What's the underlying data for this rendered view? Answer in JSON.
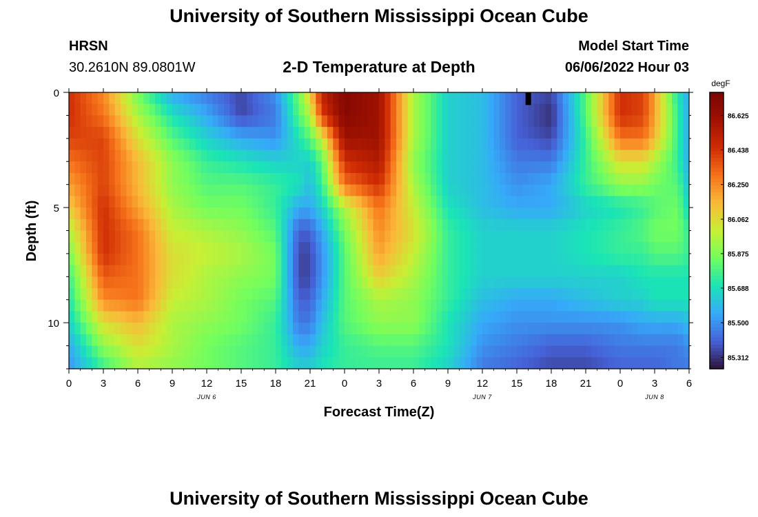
{
  "page": {
    "title": "University of Southern Mississippi Ocean Cube",
    "footer_title": "University of Southern Mississippi Ocean Cube",
    "station": "HRSN",
    "coords": "30.2610N  89.0801W",
    "plot_title": "2-D Temperature at Depth",
    "model_start_label": "Model Start Time",
    "model_start_value": "06/06/2022 Hour 03"
  },
  "chart_data": {
    "type": "heatmap",
    "title": "2-D Temperature at Depth",
    "xlabel": "Forecast Time(Z)",
    "ylabel": "Depth (ft)",
    "x_range_hours": [
      0,
      54
    ],
    "y_range_ft": [
      0,
      12
    ],
    "x_ticks": [
      {
        "h": 0,
        "label": "0"
      },
      {
        "h": 3,
        "label": "3"
      },
      {
        "h": 6,
        "label": "6"
      },
      {
        "h": 9,
        "label": "9"
      },
      {
        "h": 12,
        "label": "12"
      },
      {
        "h": 15,
        "label": "15"
      },
      {
        "h": 18,
        "label": "18"
      },
      {
        "h": 21,
        "label": "21"
      },
      {
        "h": 24,
        "label": "0"
      },
      {
        "h": 27,
        "label": "3"
      },
      {
        "h": 30,
        "label": "6"
      },
      {
        "h": 33,
        "label": "9"
      },
      {
        "h": 36,
        "label": "12"
      },
      {
        "h": 39,
        "label": "15"
      },
      {
        "h": 42,
        "label": "18"
      },
      {
        "h": 45,
        "label": "21"
      },
      {
        "h": 48,
        "label": "0"
      },
      {
        "h": 51,
        "label": "3"
      },
      {
        "h": 54,
        "label": "6"
      }
    ],
    "date_labels": [
      {
        "h": 12,
        "label": "JUN 6"
      },
      {
        "h": 36,
        "label": "JUN 7"
      },
      {
        "h": 51,
        "label": "JUN 8"
      }
    ],
    "y_ticks": [
      {
        "v": 0,
        "label": "0"
      },
      {
        "v": 5,
        "label": "5"
      },
      {
        "v": 10,
        "label": "10"
      }
    ],
    "colorbar": {
      "unit": "degF",
      "min": 85.25,
      "max": 86.75,
      "ticks": [
        "86.625",
        "86.438",
        "86.250",
        "86.062",
        "85.875",
        "85.688",
        "85.500",
        "85.312"
      ]
    },
    "hours": [
      0,
      3,
      6,
      9,
      12,
      15,
      18,
      20,
      21,
      22,
      24,
      27,
      30,
      33,
      36,
      39,
      42,
      45,
      48,
      50,
      51,
      53,
      54
    ],
    "depths_ft": [
      0,
      1,
      2,
      3,
      4,
      5,
      6,
      7,
      8,
      9,
      10,
      11,
      12
    ],
    "temperatures_degF": [
      [
        86.45,
        86.25,
        85.85,
        85.55,
        85.45,
        85.35,
        85.5,
        85.85,
        86.1,
        86.5,
        86.7,
        86.6,
        85.95,
        85.65,
        85.6,
        85.4,
        85.35,
        85.8,
        86.45,
        86.4,
        86.2,
        85.7,
        85.55
      ],
      [
        86.45,
        86.3,
        85.95,
        85.7,
        85.55,
        85.35,
        85.45,
        85.8,
        85.95,
        86.4,
        86.7,
        86.6,
        85.95,
        85.65,
        85.6,
        85.4,
        85.3,
        85.8,
        86.45,
        86.4,
        86.2,
        85.75,
        85.55
      ],
      [
        86.4,
        86.4,
        86.05,
        85.8,
        85.65,
        85.55,
        85.5,
        85.7,
        85.8,
        86.0,
        86.6,
        86.6,
        85.95,
        85.65,
        85.6,
        85.4,
        85.35,
        85.75,
        86.3,
        86.3,
        86.15,
        85.75,
        85.55
      ],
      [
        86.3,
        86.4,
        86.15,
        85.9,
        85.75,
        85.7,
        85.65,
        85.65,
        85.65,
        85.8,
        86.45,
        86.55,
        85.9,
        85.65,
        85.6,
        85.45,
        85.45,
        85.75,
        86.05,
        86.05,
        85.95,
        85.75,
        85.55
      ],
      [
        86.2,
        86.4,
        86.15,
        85.9,
        85.8,
        85.8,
        85.75,
        85.7,
        85.6,
        85.75,
        86.3,
        86.45,
        85.95,
        85.65,
        85.6,
        85.5,
        85.55,
        85.75,
        85.9,
        85.9,
        85.85,
        85.8,
        85.6
      ],
      [
        86.1,
        86.45,
        86.2,
        85.95,
        85.85,
        85.85,
        85.75,
        85.55,
        85.55,
        85.65,
        85.95,
        86.3,
        86.0,
        85.7,
        85.6,
        85.55,
        85.55,
        85.65,
        85.7,
        85.75,
        85.8,
        85.85,
        85.65
      ],
      [
        85.95,
        86.45,
        86.3,
        86.0,
        85.95,
        85.9,
        85.8,
        85.4,
        85.4,
        85.55,
        85.85,
        86.25,
        86.05,
        85.75,
        85.65,
        85.65,
        85.65,
        85.7,
        85.75,
        85.8,
        85.85,
        85.85,
        85.75
      ],
      [
        85.85,
        86.45,
        86.3,
        86.05,
        86.0,
        85.95,
        85.85,
        85.35,
        85.35,
        85.5,
        85.8,
        86.2,
        86.0,
        85.75,
        85.65,
        85.65,
        85.65,
        85.7,
        85.75,
        85.75,
        85.8,
        85.8,
        85.75
      ],
      [
        85.75,
        86.35,
        86.3,
        86.05,
        85.95,
        85.9,
        85.85,
        85.35,
        85.35,
        85.5,
        85.8,
        86.1,
        85.95,
        85.75,
        85.65,
        85.65,
        85.65,
        85.65,
        85.65,
        85.7,
        85.7,
        85.7,
        85.7
      ],
      [
        85.7,
        86.25,
        86.3,
        86.0,
        85.95,
        85.85,
        85.8,
        85.4,
        85.4,
        85.55,
        85.8,
        85.95,
        85.9,
        85.75,
        85.6,
        85.55,
        85.55,
        85.6,
        85.65,
        85.65,
        85.7,
        85.7,
        85.7
      ],
      [
        85.65,
        86.05,
        86.15,
        85.95,
        85.9,
        85.85,
        85.75,
        85.45,
        85.45,
        85.6,
        85.8,
        85.9,
        85.9,
        85.7,
        85.55,
        85.5,
        85.5,
        85.5,
        85.5,
        85.55,
        85.55,
        85.55,
        85.6
      ],
      [
        85.55,
        85.9,
        86.05,
        85.95,
        85.85,
        85.8,
        85.75,
        85.55,
        85.55,
        85.65,
        85.75,
        85.8,
        85.8,
        85.7,
        85.5,
        85.45,
        85.4,
        85.4,
        85.45,
        85.45,
        85.45,
        85.45,
        85.5
      ],
      [
        85.5,
        85.75,
        85.95,
        85.9,
        85.85,
        85.8,
        85.75,
        85.65,
        85.65,
        85.7,
        85.75,
        85.75,
        85.75,
        85.65,
        85.45,
        85.4,
        85.35,
        85.35,
        85.4,
        85.4,
        85.4,
        85.45,
        85.45
      ]
    ],
    "marker": {
      "h": 40,
      "depth_ft": 0.3,
      "label": "black marker"
    }
  }
}
